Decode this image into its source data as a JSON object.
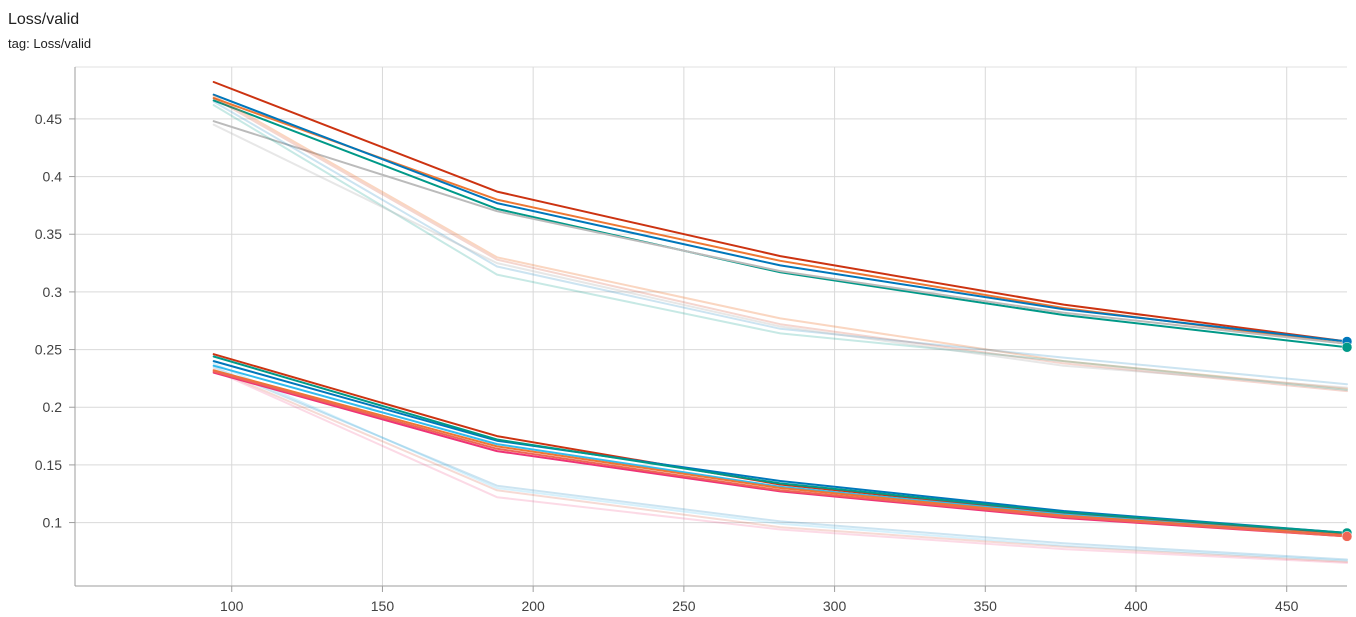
{
  "card": {
    "title": "Loss/valid",
    "tag_prefix": "tag:",
    "tag": "Loss/valid"
  },
  "chart_data": {
    "type": "line",
    "title": "Loss/valid",
    "xlabel": "",
    "ylabel": "",
    "xlim": [
      48,
      470
    ],
    "ylim": [
      0.045,
      0.495
    ],
    "x_ticks": [
      100,
      150,
      200,
      250,
      300,
      350,
      400,
      450
    ],
    "y_ticks": [
      0.1,
      0.15,
      0.2,
      0.25,
      0.3,
      0.35,
      0.4,
      0.45
    ],
    "grid": true,
    "legend": "none",
    "x": [
      94,
      188,
      282,
      376,
      470
    ],
    "series": [
      {
        "color": "#cc3311",
        "opacity": 1,
        "width": 2,
        "values": [
          0.482,
          0.387,
          0.331,
          0.289,
          0.257
        ],
        "marker": false
      },
      {
        "color": "#ee7733",
        "opacity": 1,
        "width": 2,
        "values": [
          0.468,
          0.38,
          0.327,
          0.286,
          0.255
        ],
        "marker": false
      },
      {
        "color": "#0077bb",
        "opacity": 1,
        "width": 2,
        "values": [
          0.471,
          0.377,
          0.323,
          0.285,
          0.257
        ],
        "marker": true
      },
      {
        "color": "#009988",
        "opacity": 1,
        "width": 2,
        "values": [
          0.466,
          0.372,
          0.317,
          0.28,
          0.252
        ],
        "marker": true
      },
      {
        "color": "#bbbbbb",
        "opacity": 1,
        "width": 2,
        "values": [
          0.448,
          0.37,
          0.318,
          0.282,
          0.255
        ],
        "marker": false
      },
      {
        "color": "#ee7733",
        "opacity": 0.3,
        "width": 2,
        "values": [
          0.47,
          0.33,
          0.277,
          0.24,
          0.216
        ],
        "marker": false
      },
      {
        "color": "#cc3311",
        "opacity": 0.2,
        "width": 2,
        "values": [
          0.468,
          0.328,
          0.272,
          0.238,
          0.214
        ],
        "marker": false
      },
      {
        "color": "#0077bb",
        "opacity": 0.2,
        "width": 2,
        "values": [
          0.465,
          0.322,
          0.268,
          0.243,
          0.22
        ],
        "marker": false
      },
      {
        "color": "#009988",
        "opacity": 0.22,
        "width": 2,
        "values": [
          0.462,
          0.315,
          0.264,
          0.24,
          0.215
        ],
        "marker": false
      },
      {
        "color": "#bbbbbb",
        "opacity": 0.35,
        "width": 2,
        "values": [
          0.445,
          0.325,
          0.27,
          0.236,
          0.217
        ],
        "marker": false
      },
      {
        "color": "#0077bb",
        "opacity": 0.2,
        "width": 2,
        "values": [
          0.235,
          0.132,
          0.101,
          0.082,
          0.068
        ],
        "marker": false
      },
      {
        "color": "#ee3377",
        "opacity": 0.18,
        "width": 2,
        "values": [
          0.232,
          0.122,
          0.094,
          0.077,
          0.065
        ],
        "marker": false
      },
      {
        "color": "#cc3311",
        "opacity": 0.18,
        "width": 2,
        "values": [
          0.233,
          0.128,
          0.096,
          0.079,
          0.066
        ],
        "marker": false
      },
      {
        "color": "#33bbee",
        "opacity": 0.2,
        "width": 2,
        "values": [
          0.238,
          0.13,
          0.099,
          0.08,
          0.067
        ],
        "marker": false
      },
      {
        "color": "#cc3311",
        "opacity": 1,
        "width": 2,
        "values": [
          0.246,
          0.175,
          0.133,
          0.108,
          0.09
        ],
        "marker": false
      },
      {
        "color": "#0077bb",
        "opacity": 1,
        "width": 2,
        "values": [
          0.24,
          0.171,
          0.136,
          0.11,
          0.091
        ],
        "marker": false
      },
      {
        "color": "#009988",
        "opacity": 1,
        "width": 2,
        "values": [
          0.244,
          0.172,
          0.134,
          0.109,
          0.091
        ],
        "marker": true
      },
      {
        "color": "#33bbee",
        "opacity": 1,
        "width": 2,
        "values": [
          0.236,
          0.168,
          0.131,
          0.107,
          0.089
        ],
        "marker": false
      },
      {
        "color": "#ee7733",
        "opacity": 1,
        "width": 2,
        "values": [
          0.232,
          0.166,
          0.13,
          0.106,
          0.089
        ],
        "marker": false
      },
      {
        "color": "#ee3377",
        "opacity": 1,
        "width": 2,
        "values": [
          0.23,
          0.162,
          0.127,
          0.104,
          0.088
        ],
        "marker": false
      },
      {
        "color": "#ee6655",
        "opacity": 1,
        "width": 2,
        "values": [
          0.231,
          0.164,
          0.128,
          0.105,
          0.088
        ],
        "marker": true
      }
    ]
  }
}
